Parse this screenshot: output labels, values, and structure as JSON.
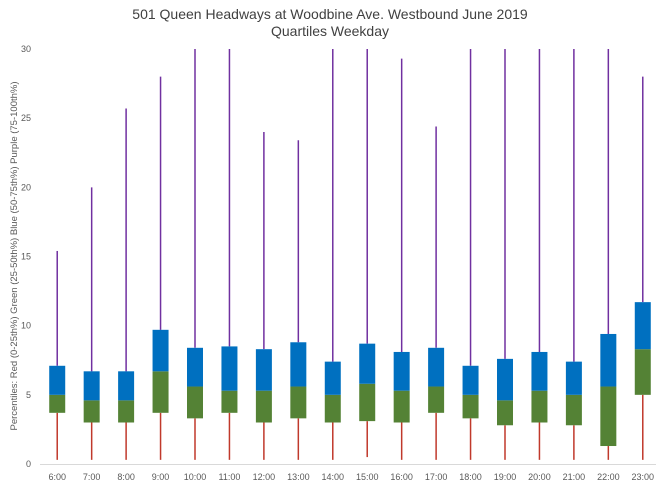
{
  "chart_data": {
    "type": "box",
    "title": "501 Queen Headways at Woodbine Ave. Westbound June 2019",
    "subtitle": "Quartiles Weekday",
    "ylabel": "Percentiles: Red (0-25th%) Green (25-50th%) Blue (50-75th%) Purple (75-100th%)",
    "xlabel": "",
    "ylim": [
      0,
      30
    ],
    "yticks": [
      "0",
      "5",
      "10",
      "15",
      "20",
      "25",
      "30"
    ],
    "grid": false,
    "colors": {
      "min_q1": "#c0392b",
      "q1_median": "#548235",
      "median_q3": "#0070c0",
      "q3_max": "#7030a0"
    },
    "categories": [
      "6:00",
      "7:00",
      "8:00",
      "9:00",
      "10:00",
      "11:00",
      "12:00",
      "13:00",
      "14:00",
      "15:00",
      "16:00",
      "17:00",
      "18:00",
      "19:00",
      "20:00",
      "21:00",
      "22:00",
      "23:00"
    ],
    "min": [
      0.3,
      0.3,
      0.3,
      0.3,
      0.3,
      0.3,
      0.3,
      0.3,
      0.3,
      0.5,
      0.3,
      0.3,
      0.3,
      0.3,
      0.3,
      0.3,
      0.3,
      0.3
    ],
    "q1": [
      3.7,
      3.0,
      3.0,
      3.7,
      3.3,
      3.7,
      3.0,
      3.3,
      3.0,
      3.1,
      3.0,
      3.7,
      3.3,
      2.8,
      3.0,
      2.8,
      1.3,
      5.0
    ],
    "median": [
      5.0,
      4.6,
      4.6,
      6.7,
      5.6,
      5.3,
      5.3,
      5.6,
      5.0,
      5.8,
      5.3,
      5.6,
      5.0,
      4.6,
      5.3,
      5.0,
      5.6,
      8.3
    ],
    "q3": [
      7.1,
      6.7,
      6.7,
      9.7,
      8.4,
      8.5,
      8.3,
      8.8,
      7.4,
      8.7,
      8.1,
      8.4,
      7.1,
      7.6,
      8.1,
      7.4,
      9.4,
      11.7
    ],
    "max": [
      15.4,
      20.0,
      25.7,
      28.0,
      30.0,
      30.0,
      24.0,
      23.4,
      30.0,
      30.0,
      29.3,
      24.4,
      30.0,
      30.0,
      30.0,
      30.0,
      30.0,
      28.0
    ]
  }
}
